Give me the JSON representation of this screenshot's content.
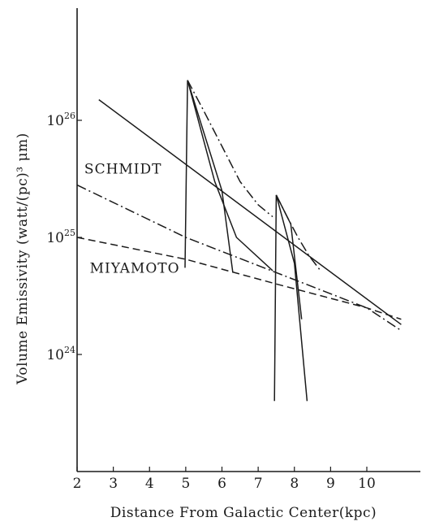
{
  "chart_data": {
    "type": "line",
    "title": "",
    "xlabel": "Distance From Galactic Center(kpc)",
    "ylabel": "Volume Emissivity (watt/(pc)³ μm)",
    "xlim": [
      2,
      11
    ],
    "y_scale": "log",
    "ylim": [
      2e+23,
      1e+27
    ],
    "x_ticks": [
      "2",
      "3",
      "4",
      "5",
      "6",
      "7",
      "8",
      "9",
      "10"
    ],
    "y_ticks": [
      {
        "base": "10",
        "exp": "24",
        "value": 1e+24
      },
      {
        "base": "10",
        "exp": "25",
        "value": 1e+25
      },
      {
        "base": "10",
        "exp": "26",
        "value": 1e+26
      }
    ],
    "series": [
      {
        "name": "",
        "style": "solid",
        "x": [
          2.6,
          10.95
        ],
        "y": [
          1.5e+26,
          1.8e+24
        ]
      },
      {
        "name": "SCHMIDT",
        "style": "dash-dot",
        "x": [
          2.0,
          5.0,
          7.5,
          10.0,
          10.95
        ],
        "y": [
          2.8e+25,
          1e+25,
          5e+24,
          2.5e+24,
          1.6e+24
        ]
      },
      {
        "name": "MIYAMOTO",
        "style": "dashed",
        "x": [
          2.0,
          5.0,
          7.5,
          10.0,
          10.95
        ],
        "y": [
          1e+25,
          6.5e+24,
          4e+24,
          2.5e+24,
          2e+24
        ]
      },
      {
        "name": "",
        "style": "dash-dot",
        "x": [
          5.05,
          5.5,
          6.0,
          6.5,
          7.0,
          7.4
        ],
        "y": [
          2.2e+26,
          1.2e+26,
          6e+25,
          3e+25,
          1.9e+25,
          1.5e+25
        ]
      },
      {
        "name": "",
        "style": "dash-dot",
        "x": [
          7.5,
          7.8,
          8.1,
          8.4,
          8.7
        ],
        "y": [
          2.3e+25,
          1.5e+25,
          1e+25,
          7e+24,
          5.3e+24
        ]
      },
      {
        "name": "",
        "style": "solid",
        "x": [
          4.98,
          4.98,
          5.05,
          6.0,
          6.3
        ],
        "y": [
          5.5e+24,
          5.5e+24,
          2.2e+26,
          2.5e+25,
          5e+24
        ]
      },
      {
        "name": "",
        "style": "solid",
        "x": [
          5.05,
          5.8,
          6.4,
          7.4
        ],
        "y": [
          2.2e+26,
          3e+25,
          1e+25,
          5.2e+24
        ]
      },
      {
        "name": "",
        "style": "solid",
        "x": [
          7.45,
          7.45,
          7.5,
          8.0,
          8.35
        ],
        "y": [
          4e+23,
          4e+23,
          2.3e+25,
          6e+24,
          4e+23
        ]
      },
      {
        "name": "",
        "style": "solid",
        "x": [
          7.5,
          7.9,
          8.2
        ],
        "y": [
          2.3e+25,
          1.3e+25,
          2e+24
        ]
      }
    ],
    "annotations": [
      {
        "text": "SCHMIDT",
        "x": 2.2,
        "y": 3.5e+25
      },
      {
        "text": "MIYAMOTO",
        "x": 2.35,
        "y": 5e+24
      }
    ]
  }
}
